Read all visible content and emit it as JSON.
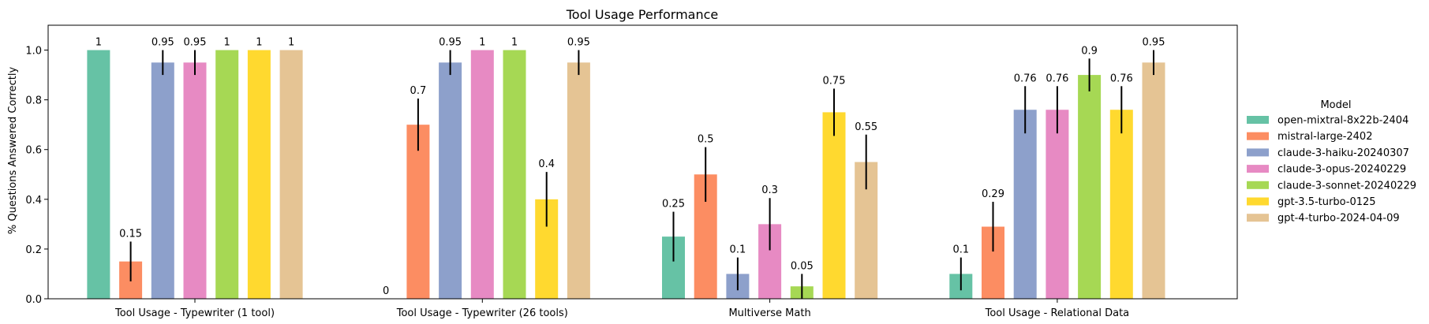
{
  "chart_data": {
    "type": "bar",
    "title": "Tool Usage Performance",
    "xlabel": "",
    "ylabel": "% Questions Answered Correctly",
    "ylim": [
      0,
      1.1
    ],
    "yticks": [
      0.0,
      0.2,
      0.4,
      0.6,
      0.8,
      1.0
    ],
    "ytick_labels": [
      "0.0",
      "0.2",
      "0.4",
      "0.6",
      "0.8",
      "1.0"
    ],
    "grid": false,
    "categories": [
      "Tool Usage - Typewriter (1 tool)",
      "Tool Usage - Typewriter (26 tools)",
      "Multiverse Math",
      "Tool Usage - Relational Data"
    ],
    "legend": {
      "title": "Model",
      "placement": "right"
    },
    "series": [
      {
        "name": "open-mixtral-8x22b-2404",
        "color": "#66c2a5",
        "values": [
          1,
          0,
          0.25,
          0.1
        ],
        "labels": [
          "1",
          "0",
          "0.25",
          "0.1"
        ],
        "errors": [
          null,
          null,
          0.1,
          0.066
        ]
      },
      {
        "name": "mistral-large-2402",
        "color": "#fc8d62",
        "values": [
          0.15,
          0.7,
          0.5,
          0.29
        ],
        "labels": [
          "0.15",
          "0.7",
          "0.5",
          "0.29"
        ],
        "errors": [
          0.08,
          0.105,
          0.11,
          0.1
        ]
      },
      {
        "name": "claude-3-haiku-20240307",
        "color": "#8da0cb",
        "values": [
          0.95,
          0.95,
          0.1,
          0.76
        ],
        "labels": [
          "0.95",
          "0.95",
          "0.1",
          "0.76"
        ],
        "errors": [
          0.05,
          0.05,
          0.066,
          0.095
        ]
      },
      {
        "name": "claude-3-opus-20240229",
        "color": "#e78ac3",
        "values": [
          0.95,
          1,
          0.3,
          0.76
        ],
        "labels": [
          "0.95",
          "1",
          "0.3",
          "0.76"
        ],
        "errors": [
          0.05,
          null,
          0.105,
          0.095
        ]
      },
      {
        "name": "claude-3-sonnet-20240229",
        "color": "#a6d854",
        "values": [
          1,
          1,
          0.05,
          0.9
        ],
        "labels": [
          "1",
          "1",
          "0.05",
          "0.9"
        ],
        "errors": [
          null,
          null,
          0.05,
          0.066
        ]
      },
      {
        "name": "gpt-3.5-turbo-0125",
        "color": "#ffd92f",
        "values": [
          1,
          0.4,
          0.75,
          0.76
        ],
        "labels": [
          "1",
          "0.4",
          "0.75",
          "0.76"
        ],
        "errors": [
          null,
          0.11,
          0.095,
          0.095
        ]
      },
      {
        "name": "gpt-4-turbo-2024-04-09",
        "color": "#e5c494",
        "values": [
          1,
          0.95,
          0.55,
          0.95
        ],
        "labels": [
          "1",
          "0.95",
          "0.55",
          "0.95"
        ],
        "errors": [
          null,
          0.05,
          0.11,
          0.05
        ]
      }
    ]
  }
}
